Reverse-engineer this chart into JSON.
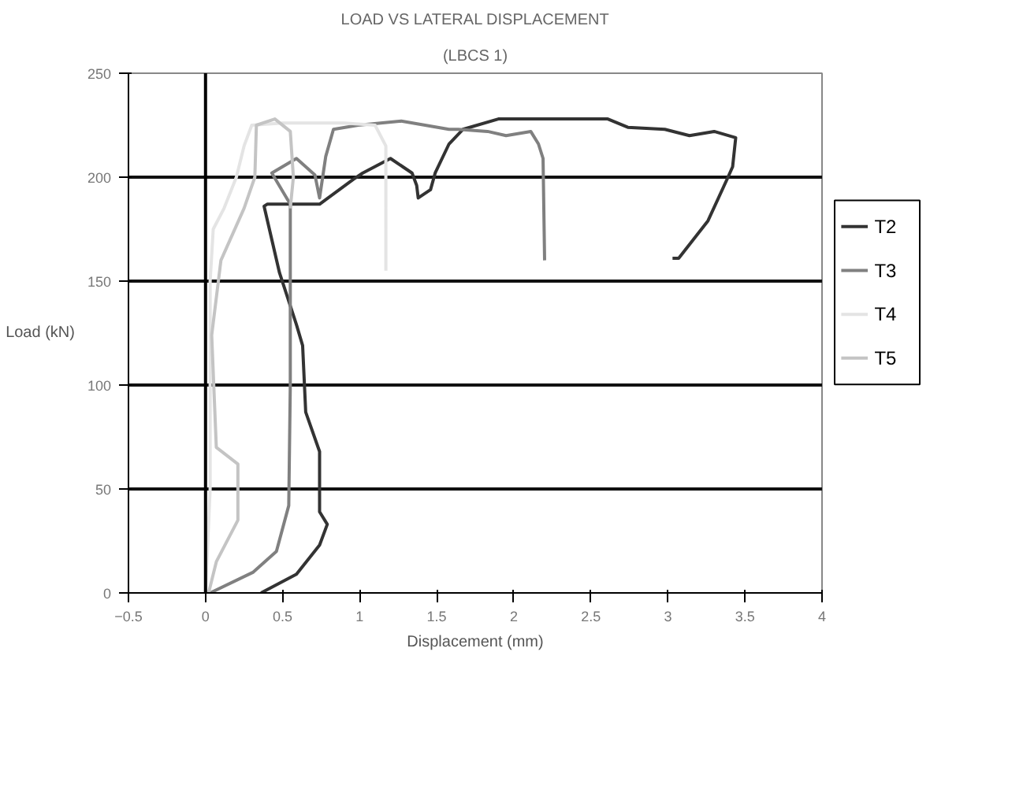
{
  "chart_data": {
    "type": "line",
    "title": "LOAD VS LATERAL DISPLACEMENT",
    "subtitle": "(LBCS 1)",
    "xlabel": "Displacement (mm)",
    "ylabel": "Load (kN)",
    "xlim": [
      -0.5,
      4
    ],
    "xticks": [
      -0.5,
      0,
      0.5,
      1,
      1.5,
      2,
      2.5,
      3,
      3.5,
      4
    ],
    "ylim": [
      0,
      250
    ],
    "yticks": [
      0,
      50,
      100,
      150,
      200,
      250
    ],
    "grid": "y",
    "legend": "right",
    "ref_lines": [
      {
        "axis": "x",
        "value": 0,
        "color": "#000000"
      }
    ],
    "series": [
      {
        "name": "T2",
        "color": "#333333",
        "x": [
          0.36,
          0.59,
          0.74,
          0.79,
          0.74,
          0.74,
          0.65,
          0.63,
          0.59,
          0.48,
          0.38,
          0.4,
          0.74,
          0.96,
          1.02,
          1.2,
          1.34,
          1.37,
          1.38,
          1.46,
          1.49,
          1.58,
          1.67,
          1.9,
          2.61,
          2.74,
          2.98,
          3.14,
          3.3,
          3.44,
          3.42,
          3.39,
          3.26,
          3.07,
          3.03
        ],
        "values": [
          0,
          9,
          23,
          33,
          39,
          68,
          87,
          119,
          129,
          154,
          186,
          187,
          187,
          199,
          202,
          209,
          202,
          196,
          190,
          194,
          202,
          216,
          223,
          228,
          228,
          224,
          223,
          220,
          222,
          219,
          205,
          200,
          179,
          161,
          161
        ]
      },
      {
        "name": "T3",
        "color": "#808080",
        "x": [
          0.03,
          0.31,
          0.46,
          0.54,
          0.55,
          0.55,
          0.55,
          0.43,
          0.59,
          0.71,
          0.74,
          0.78,
          0.83,
          0.99,
          1.27,
          1.58,
          1.64,
          1.83,
          1.95,
          2.11,
          2.16,
          2.19,
          2.2
        ],
        "values": [
          0,
          10,
          20,
          42,
          100,
          154,
          187,
          202,
          209,
          201,
          190,
          210,
          223,
          225,
          227,
          223,
          223,
          222,
          220,
          222,
          216,
          209,
          160
        ]
      },
      {
        "name": "T4",
        "color": "#e4e4e4",
        "x": [
          0,
          0.03,
          0.03,
          0.03,
          0.05,
          0.12,
          0.2,
          0.25,
          0.3,
          0.5,
          0.9,
          1.1,
          1.17,
          1.17
        ],
        "values": [
          0,
          50,
          100,
          150,
          175,
          185,
          200,
          215,
          225,
          226,
          226,
          225,
          215,
          155
        ]
      },
      {
        "name": "T5",
        "color": "#c4c4c4",
        "x": [
          0.02,
          0.07,
          0.21,
          0.21,
          0.07,
          0.04,
          0.1,
          0.25,
          0.32,
          0.33,
          0.45,
          0.55,
          0.57,
          0.55
        ],
        "values": [
          0,
          15,
          35,
          62,
          70,
          124,
          160,
          185,
          200,
          225,
          228,
          222,
          200,
          185
        ]
      }
    ]
  }
}
